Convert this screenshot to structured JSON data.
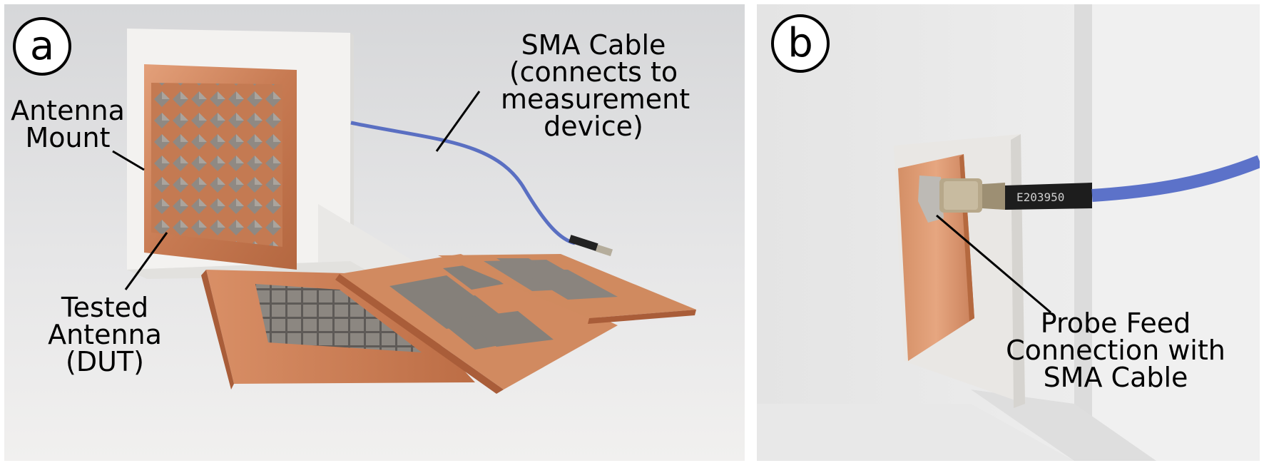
{
  "panel_a": {
    "badge": "a",
    "labels": {
      "sma_cable": [
        "SMA Cable",
        "(connects to",
        "measurement",
        "device)"
      ],
      "antenna_mount": [
        "Antenna",
        "Mount"
      ],
      "tested_antenna": [
        "Tested",
        "Antenna",
        "(DUT)"
      ]
    }
  },
  "panel_b": {
    "badge": "b",
    "cable_print": "E203950",
    "labels": {
      "probe_feed": [
        "Probe Feed",
        "Connection with",
        "SMA Cable"
      ]
    }
  }
}
